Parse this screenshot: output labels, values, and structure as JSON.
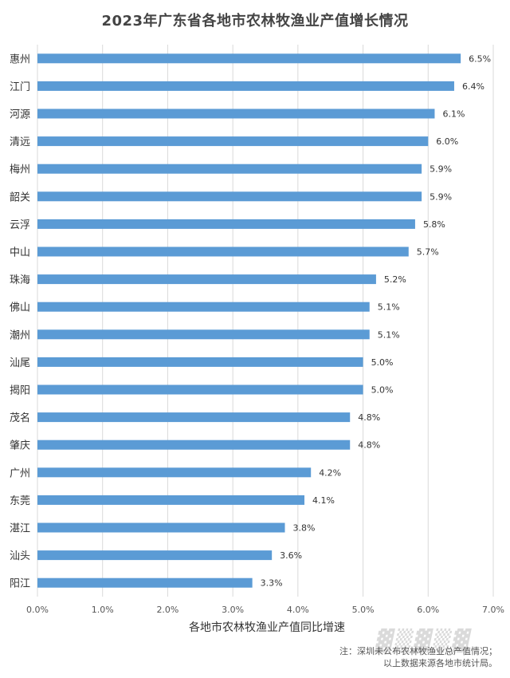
{
  "chart_data": {
    "type": "bar",
    "orientation": "horizontal",
    "title": "2023年广东省各地市农林牧渔业产值增长情况",
    "xlabel": "各地市农林牧渔业产值同比增速",
    "ylabel": "",
    "categories": [
      "惠州",
      "江门",
      "河源",
      "清远",
      "梅州",
      "韶关",
      "云浮",
      "中山",
      "珠海",
      "佛山",
      "潮州",
      "汕尾",
      "揭阳",
      "茂名",
      "肇庆",
      "广州",
      "东莞",
      "湛江",
      "汕头",
      "阳江"
    ],
    "values": [
      6.5,
      6.4,
      6.1,
      6.0,
      5.9,
      5.9,
      5.8,
      5.7,
      5.2,
      5.1,
      5.1,
      5.0,
      5.0,
      4.8,
      4.8,
      4.2,
      4.1,
      3.8,
      3.6,
      3.3
    ],
    "value_labels": [
      "6.5%",
      "6.4%",
      "6.1%",
      "6.0%",
      "5.9%",
      "5.9%",
      "5.8%",
      "5.7%",
      "5.2%",
      "5.1%",
      "5.1%",
      "5.0%",
      "5.0%",
      "4.8%",
      "4.8%",
      "4.2%",
      "4.1%",
      "3.8%",
      "3.6%",
      "3.3%"
    ],
    "xlim": [
      0,
      7
    ],
    "xticks": [
      "0.0%",
      "1.0%",
      "2.0%",
      "3.0%",
      "4.0%",
      "5.0%",
      "6.0%",
      "7.0%"
    ],
    "grid": true,
    "bar_color": "#5B9BD5"
  },
  "notes": {
    "line1": "注：深圳未公布农林牧渔业总产值情况；",
    "line2": "以上数据来源各地市统计局。"
  }
}
